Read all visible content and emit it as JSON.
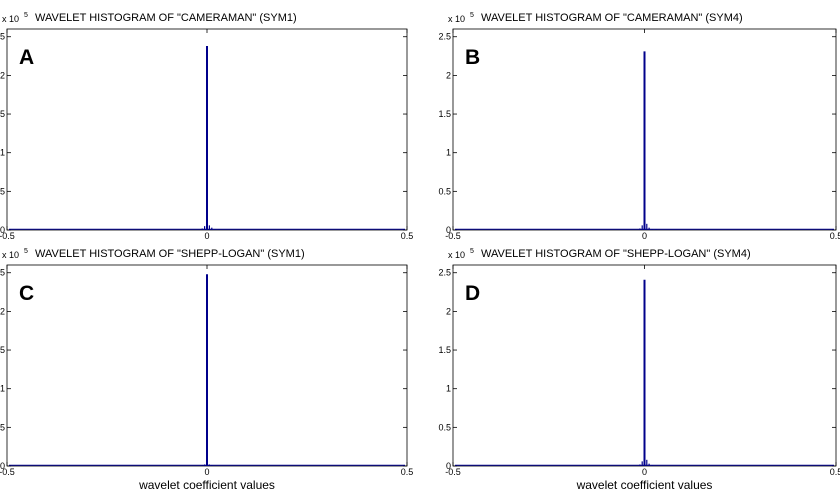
{
  "figure": {
    "xlabel": "wavelet coefficient values"
  },
  "colors": {
    "series": "#00008b",
    "axis": "#000000",
    "background": "#ffffff"
  },
  "chart_data": [
    {
      "type": "histogram",
      "panel_label": "A",
      "title": "WAVELET HISTOGRAM OF \"CAMERAMAN\" (SYM1)",
      "y_scale_note": "x 10",
      "y_scale_exponent": "5",
      "xlim": [
        -0.5,
        0.5
      ],
      "ylim": [
        0,
        2.6
      ],
      "xticks": [
        -0.5,
        0,
        0.5
      ],
      "xtick_labels": [
        "-0.5",
        "0",
        "0.5"
      ],
      "yticks": [
        0,
        0.5,
        1,
        1.5,
        2,
        2.5
      ],
      "ytick_labels": [
        "0",
        "0.5",
        "1",
        "1.5",
        "2",
        "2.5"
      ],
      "xlabel": "",
      "peak": {
        "x": 0,
        "y": 2.38
      },
      "bins": [
        [
          -0.012,
          0.02
        ],
        [
          -0.006,
          0.05
        ],
        [
          0.006,
          0.06
        ],
        [
          0.012,
          0.03
        ],
        [
          0.02,
          0.012
        ],
        [
          0.03,
          0.005
        ]
      ]
    },
    {
      "type": "histogram",
      "panel_label": "B",
      "title": "WAVELET HISTOGRAM OF \"CAMERAMAN\" (SYM4)",
      "y_scale_note": "x 10",
      "y_scale_exponent": "5",
      "xlim": [
        -0.5,
        0.5
      ],
      "ylim": [
        0,
        2.6
      ],
      "xticks": [
        -0.5,
        0,
        0.5
      ],
      "xtick_labels": [
        "-0.5",
        "0",
        "0.5"
      ],
      "yticks": [
        0,
        0.5,
        1,
        1.5,
        2,
        2.5
      ],
      "ytick_labels": [
        "0",
        "0.5",
        "1",
        "1.5",
        "2",
        "2.5"
      ],
      "xlabel": "",
      "peak": {
        "x": 0,
        "y": 2.31
      },
      "bins": [
        [
          -0.012,
          0.02
        ],
        [
          -0.006,
          0.06
        ],
        [
          0.006,
          0.08
        ],
        [
          0.012,
          0.03
        ],
        [
          0.02,
          0.012
        ],
        [
          0.03,
          0.005
        ]
      ]
    },
    {
      "type": "histogram",
      "panel_label": "C",
      "title": "WAVELET HISTOGRAM OF \"SHEPP-LOGAN\" (SYM1)",
      "y_scale_note": "x 10",
      "y_scale_exponent": "5",
      "xlim": [
        -0.5,
        0.5
      ],
      "ylim": [
        0,
        2.6
      ],
      "xticks": [
        -0.5,
        0,
        0.5
      ],
      "xtick_labels": [
        "-0.5",
        "0",
        "0.5"
      ],
      "yticks": [
        0,
        0.5,
        1,
        1.5,
        2,
        2.5
      ],
      "ytick_labels": [
        "0",
        "0.5",
        "1",
        "1.5",
        "2",
        "2.5"
      ],
      "xlabel": "wavelet coefficient values",
      "peak": {
        "x": 0,
        "y": 2.48
      },
      "bins": [
        [
          -0.012,
          0.01
        ],
        [
          -0.006,
          0.02
        ],
        [
          0.006,
          0.02
        ],
        [
          0.012,
          0.01
        ]
      ]
    },
    {
      "type": "histogram",
      "panel_label": "D",
      "title": "WAVELET HISTOGRAM OF \"SHEPP-LOGAN\" (SYM4)",
      "y_scale_note": "x 10",
      "y_scale_exponent": "5",
      "xlim": [
        -0.5,
        0.5
      ],
      "ylim": [
        0,
        2.6
      ],
      "xticks": [
        -0.5,
        0,
        0.5
      ],
      "xtick_labels": [
        "-0.5",
        "0",
        "0.5"
      ],
      "yticks": [
        0,
        0.5,
        1,
        1.5,
        2,
        2.5
      ],
      "ytick_labels": [
        "0",
        "0.5",
        "1",
        "1.5",
        "2",
        "2.5"
      ],
      "xlabel": "wavelet coefficient values",
      "peak": {
        "x": 0,
        "y": 2.41
      },
      "bins": [
        [
          -0.012,
          0.02
        ],
        [
          -0.006,
          0.06
        ],
        [
          0.006,
          0.08
        ],
        [
          0.012,
          0.03
        ],
        [
          0.02,
          0.01
        ]
      ]
    }
  ]
}
